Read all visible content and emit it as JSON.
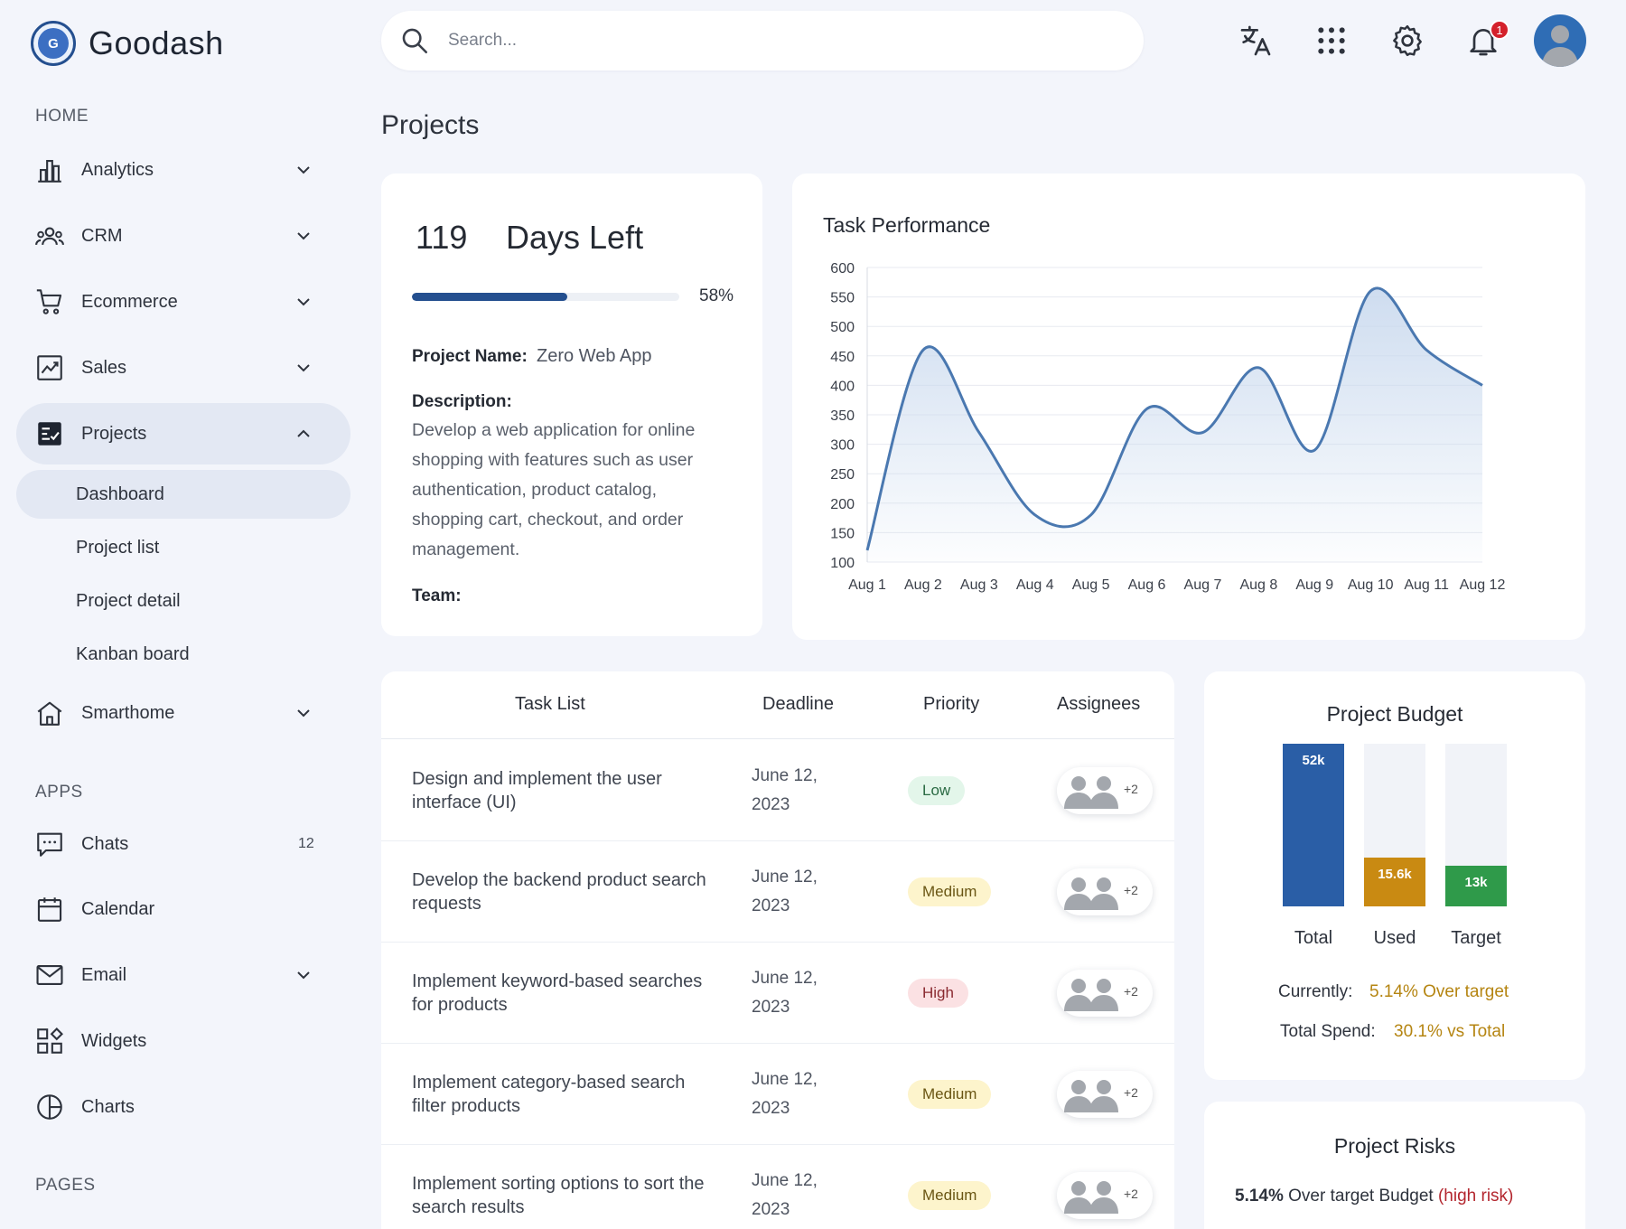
{
  "brand": {
    "logo_letter": "G",
    "name": "Goodash"
  },
  "search": {
    "placeholder": "Search..."
  },
  "header_icons": [
    "translate-icon",
    "apps-grid-icon",
    "settings-icon",
    "bell-icon"
  ],
  "notifications": {
    "count": "1"
  },
  "sidebar": {
    "sections": {
      "home": "HOME",
      "apps": "APPS",
      "pages": "PAGES"
    },
    "home_items": [
      {
        "label": "Analytics",
        "icon": "bar-chart-icon"
      },
      {
        "label": "CRM",
        "icon": "people-icon"
      },
      {
        "label": "Ecommerce",
        "icon": "cart-icon"
      },
      {
        "label": "Sales",
        "icon": "trend-chart-icon"
      },
      {
        "label": "Projects",
        "icon": "checklist-icon"
      }
    ],
    "projects_sub": [
      "Dashboard",
      "Project list",
      "Project detail",
      "Kanban board"
    ],
    "smarthome": {
      "label": "Smarthome",
      "icon": "house-icon"
    },
    "app_items": [
      {
        "label": "Chats",
        "icon": "chat-icon",
        "count": "12"
      },
      {
        "label": "Calendar",
        "icon": "calendar-icon"
      },
      {
        "label": "Email",
        "icon": "mail-icon"
      },
      {
        "label": "Widgets",
        "icon": "widgets-icon"
      },
      {
        "label": "Charts",
        "icon": "pie-chart-icon"
      }
    ]
  },
  "page": {
    "title": "Projects"
  },
  "days_card": {
    "days": "119",
    "days_label": "Days Left",
    "progress": 0.58,
    "progress_label": "58%",
    "project_name_label": "Project Name:",
    "project_name": "Zero Web App",
    "description_label": "Description:",
    "description": "Develop a web application for online shopping with features such as user authentication, product catalog, shopping cart, checkout, and order management.",
    "team_label": "Team:"
  },
  "task_performance": {
    "title": "Task Performance"
  },
  "chart_data": {
    "type": "area",
    "title": "Task Performance",
    "categories": [
      "Aug 1",
      "Aug 2",
      "Aug 3",
      "Aug 4",
      "Aug 5",
      "Aug 6",
      "Aug 7",
      "Aug 8",
      "Aug 9",
      "Aug 10",
      "Aug 11",
      "Aug 12"
    ],
    "series": [
      {
        "values": [
          120,
          460,
          320,
          180,
          180,
          360,
          320,
          430,
          290,
          560,
          460,
          400
        ]
      }
    ],
    "yticks": [
      100,
      150,
      200,
      250,
      300,
      350,
      400,
      450,
      500,
      550,
      600
    ],
    "ylim": [
      100,
      600
    ],
    "grid": true,
    "line_color": "#4a78b0",
    "fill_color": "#c9d9ee"
  },
  "task_table": {
    "headers": {
      "task": "Task List",
      "deadline": "Deadline",
      "priority": "Priority",
      "assignees": "Assignees"
    },
    "rows": [
      {
        "task": "Design and implement the user interface (UI)",
        "deadline": "June 12, 2023",
        "priority": "Low",
        "extra": "+2"
      },
      {
        "task": "Develop the backend product search requests",
        "deadline": "June 12, 2023",
        "priority": "Medium",
        "extra": "+2"
      },
      {
        "task": "Implement keyword-based searches for products",
        "deadline": "June 12, 2023",
        "priority": "High",
        "extra": "+2"
      },
      {
        "task": "Implement category-based search filter products",
        "deadline": "June 12, 2023",
        "priority": "Medium",
        "extra": "+2"
      },
      {
        "task": "Implement sorting options to sort the search results",
        "deadline": "June 12, 2023",
        "priority": "Medium",
        "extra": "+2"
      }
    ]
  },
  "budget": {
    "title": "Project Budget",
    "bars": [
      {
        "label": "Total",
        "value_label": "52k",
        "value": 52,
        "color": "#2a5ea6"
      },
      {
        "label": "Used",
        "value_label": "15.6k",
        "value": 15.6,
        "color": "#c98a12"
      },
      {
        "label": "Target",
        "value_label": "13k",
        "value": 13,
        "color": "#2f9a4a"
      }
    ],
    "currently_label": "Currently:",
    "currently_value": "5.14% Over target",
    "spend_label": "Total Spend:",
    "spend_value": "30.1% vs Total"
  },
  "risks": {
    "title": "Project Risks",
    "pct": "5.14%",
    "text": "Over target Budget",
    "level": "(high risk)"
  }
}
